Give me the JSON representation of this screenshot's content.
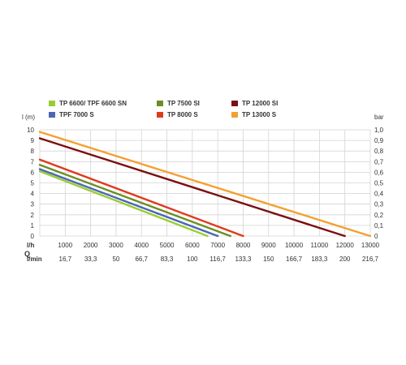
{
  "chart_data": {
    "type": "line",
    "left_axis_label": "l (m)",
    "right_axis_label": "bar",
    "q_label": "Q",
    "lh_row_label": "l/h",
    "lmin_row_label": "l/min",
    "y_ticks": [
      "0",
      "1",
      "2",
      "3",
      "4",
      "5",
      "6",
      "7",
      "8",
      "9",
      "10"
    ],
    "y2_ticks": [
      "0",
      "0,1",
      "0,2",
      "0,3",
      "0,4",
      "0,5",
      "0,6",
      "0,7",
      "0,8",
      "0,9",
      "1,0"
    ],
    "x_ticks_lh": [
      "1000",
      "2000",
      "3000",
      "4000",
      "5000",
      "6000",
      "7000",
      "8000",
      "9000",
      "10000",
      "11000",
      "12000",
      "13000"
    ],
    "x_ticks_lmin": [
      "16,7",
      "33,3",
      "50",
      "66,7",
      "83,3",
      "100",
      "116,7",
      "133,3",
      "150",
      "166,7",
      "183,3",
      "200",
      "216,7"
    ],
    "xlim": [
      0,
      13000
    ],
    "ylim": [
      0,
      10
    ],
    "grid": true,
    "legend_position": "top",
    "series": [
      {
        "name": "TP 6600/ TPF 6600 SN",
        "color": "#9acd32",
        "x": [
          0,
          6600
        ],
        "y": [
          6.1,
          0
        ]
      },
      {
        "name": "TPF 7000 S",
        "color": "#4a67b5",
        "x": [
          0,
          7000
        ],
        "y": [
          6.3,
          0
        ]
      },
      {
        "name": "TP 7500 SI",
        "color": "#6b8e23",
        "x": [
          0,
          7500
        ],
        "y": [
          6.7,
          0
        ]
      },
      {
        "name": "TP 8000 S",
        "color": "#e03a1e",
        "x": [
          0,
          8000
        ],
        "y": [
          7.2,
          0
        ]
      },
      {
        "name": "TP 12000 SI",
        "color": "#7a1010",
        "x": [
          0,
          12000
        ],
        "y": [
          9.2,
          0
        ]
      },
      {
        "name": "TP 13000 S",
        "color": "#f4a030",
        "x": [
          0,
          13000
        ],
        "y": [
          9.8,
          0
        ]
      }
    ]
  }
}
